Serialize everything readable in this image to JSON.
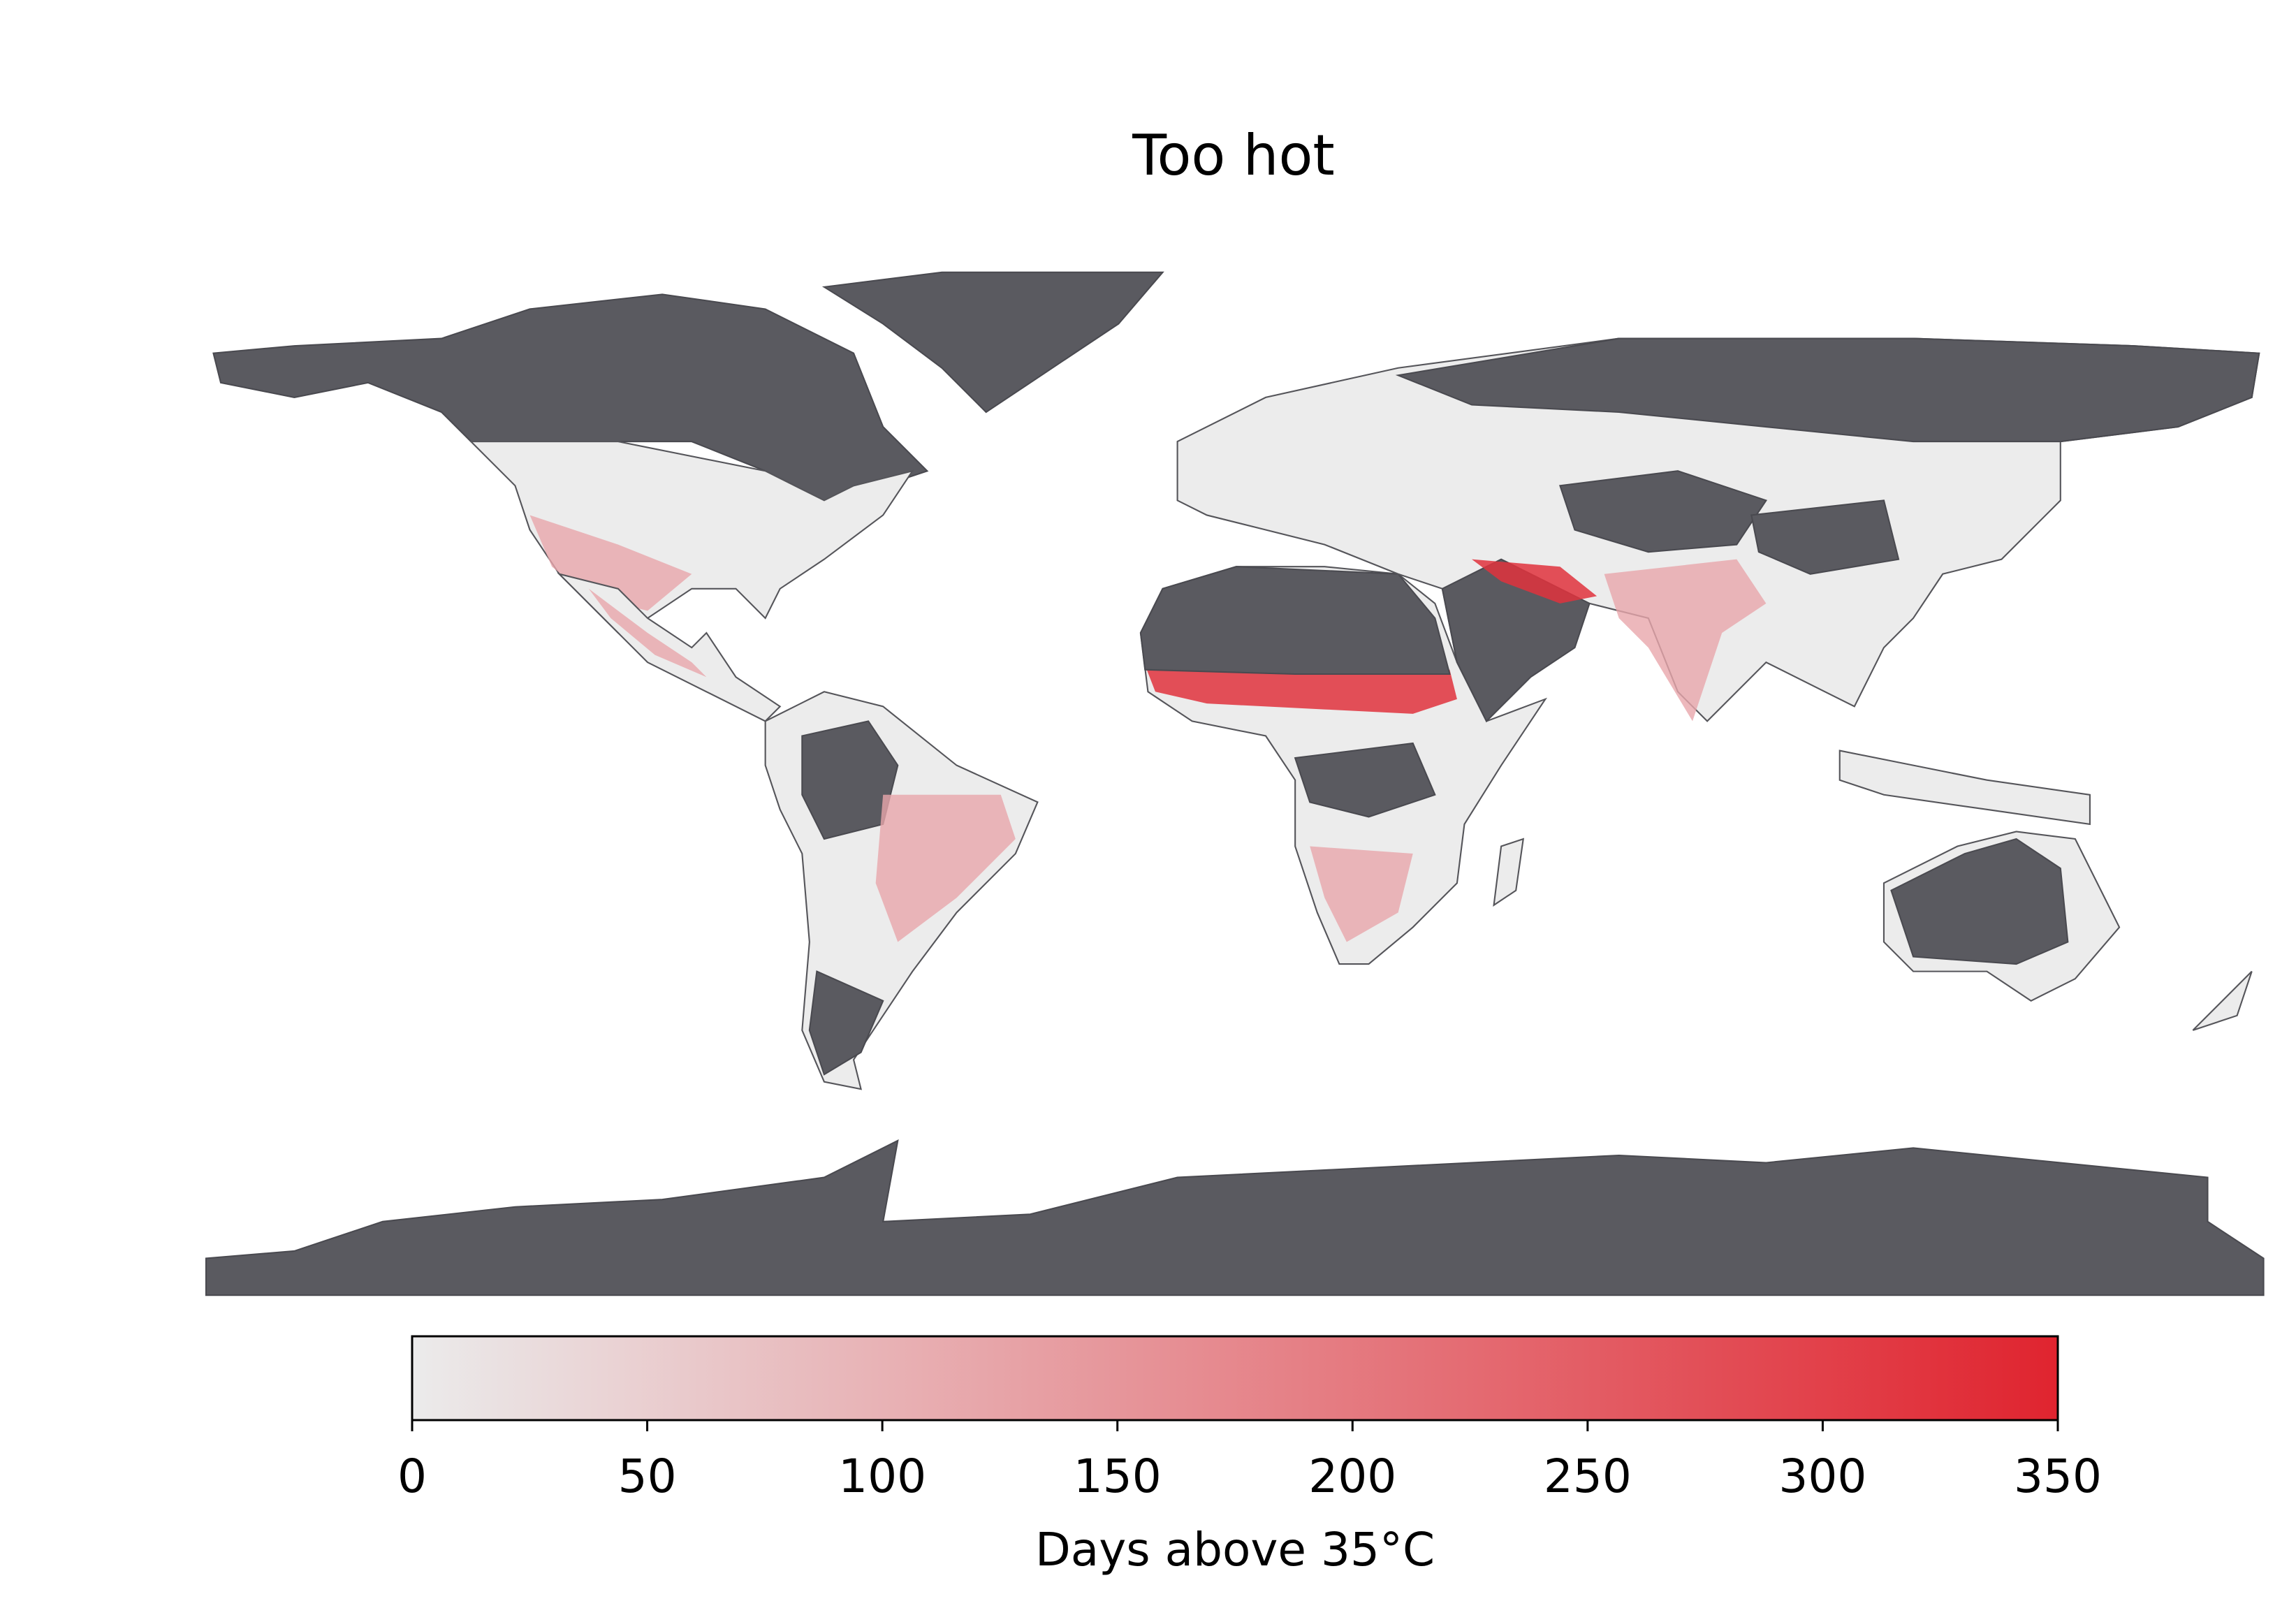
{
  "title": "Too hot",
  "colorbar": {
    "label": "Days above 35°C",
    "lim": [
      0,
      350
    ],
    "ticks": [
      0,
      50,
      100,
      150,
      200,
      250,
      300,
      350
    ],
    "colors": [
      "#ebebeb",
      "#e0242f"
    ]
  }
}
